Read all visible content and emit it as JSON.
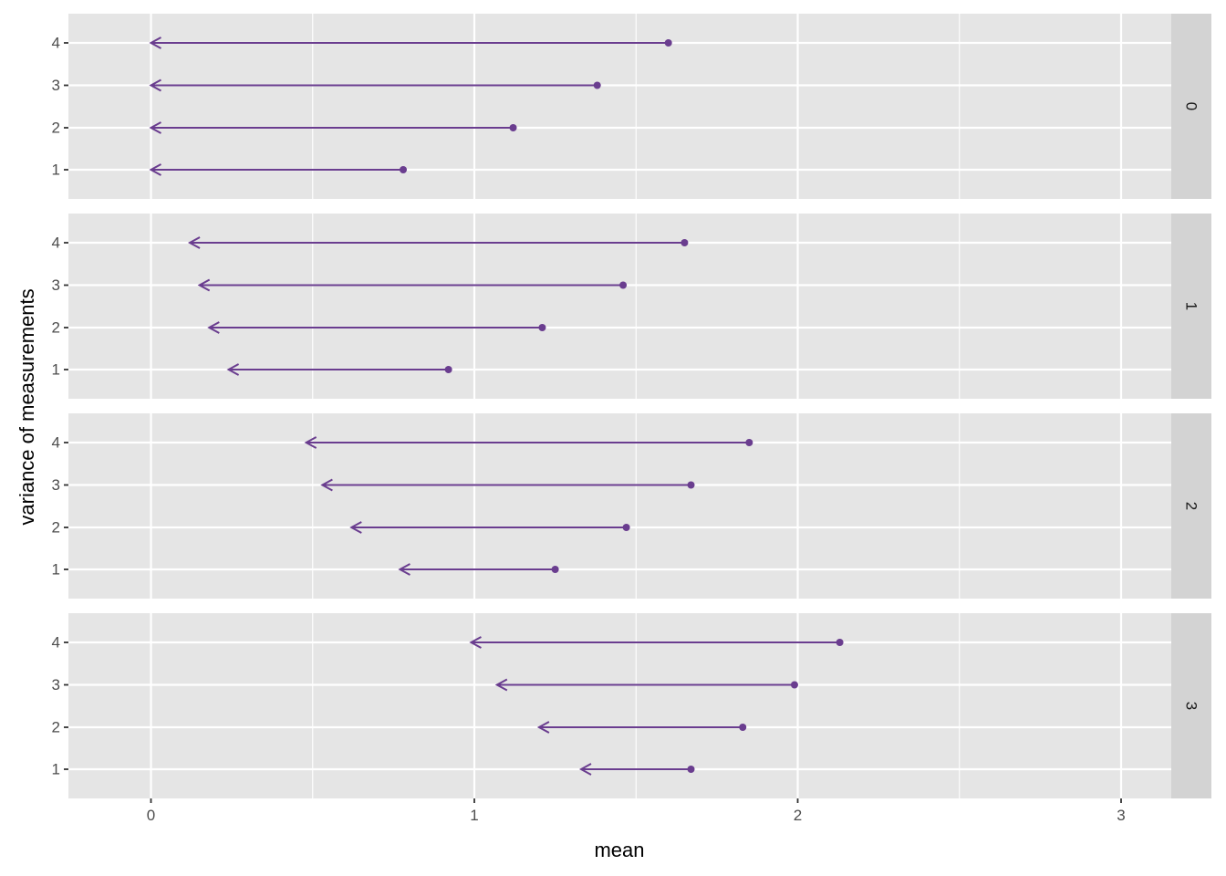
{
  "chart_data": {
    "type": "dumbbell-arrow",
    "xlabel": "mean",
    "ylabel": "variance of measurements",
    "xlim": [
      -0.26,
      3.15
    ],
    "x_ticks": [
      "0",
      "1",
      "2",
      "3"
    ],
    "y_categories": [
      "1",
      "2",
      "3",
      "4"
    ],
    "grid": true,
    "colors": {
      "series": "#6a3d8f",
      "panel_bg": "#e5e5e5",
      "strip_bg": "#d3d3d3",
      "grid": "#ffffff"
    },
    "facets": [
      {
        "label": "0",
        "segments": [
          {
            "y": "1",
            "start": 0.78,
            "end": 0.0
          },
          {
            "y": "2",
            "start": 1.12,
            "end": 0.0
          },
          {
            "y": "3",
            "start": 1.38,
            "end": 0.0
          },
          {
            "y": "4",
            "start": 1.6,
            "end": 0.0
          }
        ]
      },
      {
        "label": "1",
        "segments": [
          {
            "y": "1",
            "start": 0.92,
            "end": 0.24
          },
          {
            "y": "2",
            "start": 1.21,
            "end": 0.18
          },
          {
            "y": "3",
            "start": 1.46,
            "end": 0.15
          },
          {
            "y": "4",
            "start": 1.65,
            "end": 0.12
          }
        ]
      },
      {
        "label": "2",
        "segments": [
          {
            "y": "1",
            "start": 1.25,
            "end": 0.77
          },
          {
            "y": "2",
            "start": 1.47,
            "end": 0.62
          },
          {
            "y": "3",
            "start": 1.67,
            "end": 0.53
          },
          {
            "y": "4",
            "start": 1.85,
            "end": 0.48
          }
        ]
      },
      {
        "label": "3",
        "segments": [
          {
            "y": "1",
            "start": 1.67,
            "end": 1.33
          },
          {
            "y": "2",
            "start": 1.83,
            "end": 1.2
          },
          {
            "y": "3",
            "start": 1.99,
            "end": 1.07
          },
          {
            "y": "4",
            "start": 2.13,
            "end": 0.99
          }
        ]
      }
    ]
  }
}
